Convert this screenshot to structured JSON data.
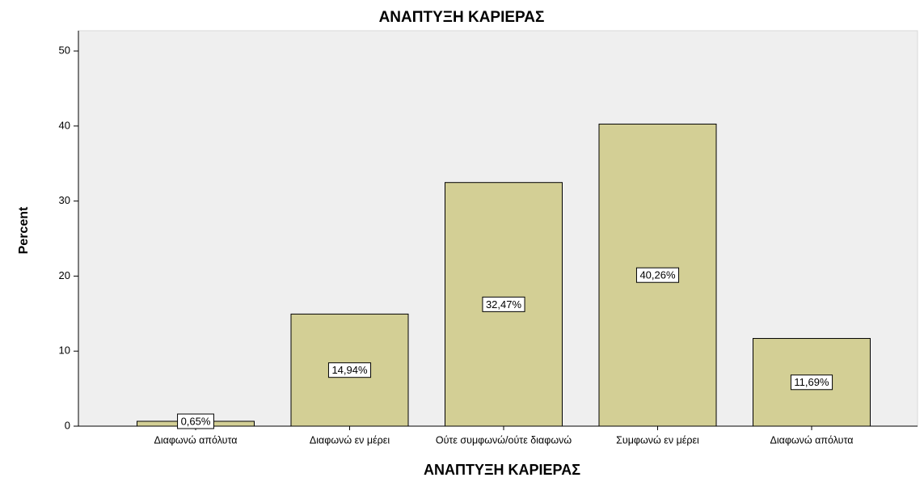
{
  "chart_data": {
    "type": "bar",
    "title": "ΑΝΑΠΤΥΞΗ ΚΑΡΙΕΡΑΣ",
    "x_label": "ΑΝΑΠΤΥΞΗ ΚΑΡΙΕΡΑΣ",
    "y_label": "Percent",
    "categories": [
      "Διαφωνώ απόλυτα",
      "Διαφωνώ εν μέρει",
      "Ούτε συμφωνώ/ούτε διαφωνώ",
      "Συμφωνώ εν μέρει",
      "Διαφωνώ απόλυτα"
    ],
    "values": [
      0.65,
      14.94,
      32.47,
      40.26,
      11.69
    ],
    "value_labels": [
      "0,65%",
      "14,94%",
      "32,47%",
      "40,26%",
      "11,69%"
    ],
    "color": "#d3cf95",
    "ylim": [
      0,
      52.7
    ],
    "yticks": [
      0,
      10,
      20,
      30,
      40,
      50
    ]
  }
}
